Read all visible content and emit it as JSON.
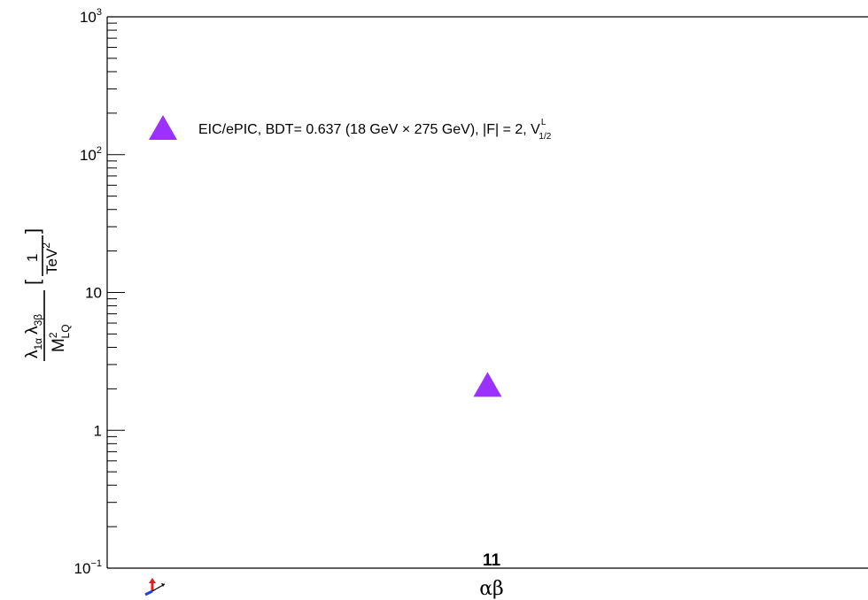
{
  "chart_data": {
    "type": "scatter",
    "title": "",
    "categories": [
      "11"
    ],
    "x_label": "αβ",
    "y_scale": "log",
    "ylim": [
      0.1,
      1000
    ],
    "y_tick_labels": [
      {
        "base": "10",
        "exp": "−1",
        "value": 0.1
      },
      {
        "base": "1",
        "exp": "",
        "value": 1
      },
      {
        "base": "10",
        "exp": "",
        "value": 10
      },
      {
        "base": "10",
        "exp": "2",
        "value": 100
      },
      {
        "base": "10",
        "exp": "3",
        "value": 1000
      }
    ],
    "y_label": {
      "lambda1": "λ",
      "lambda1_sub": "1α",
      "lambda2": "λ",
      "lambda2_sub": "3β",
      "denominator": "M",
      "denominator_sup": "2",
      "denominator_sub": "LQ",
      "unit_numerator": "1",
      "unit_denominator": "TeV",
      "unit_denominator_sup": "2"
    },
    "series": [
      {
        "name": "EIC/ePIC, BDT= 0.637  (18 GeV  × 275 GeV), |F| = 2, V",
        "name_sup": "L",
        "name_sub": "1/2",
        "marker": "triangle-up",
        "color": "#9b30ff",
        "points": [
          {
            "x": "11",
            "y": 2.0
          }
        ]
      }
    ],
    "legend_position": "top-left",
    "grid": false
  },
  "colors": {
    "marker": "#9b30ff",
    "axis": "#000000"
  },
  "icons": {
    "corner_logo": "root-axes-icon"
  }
}
